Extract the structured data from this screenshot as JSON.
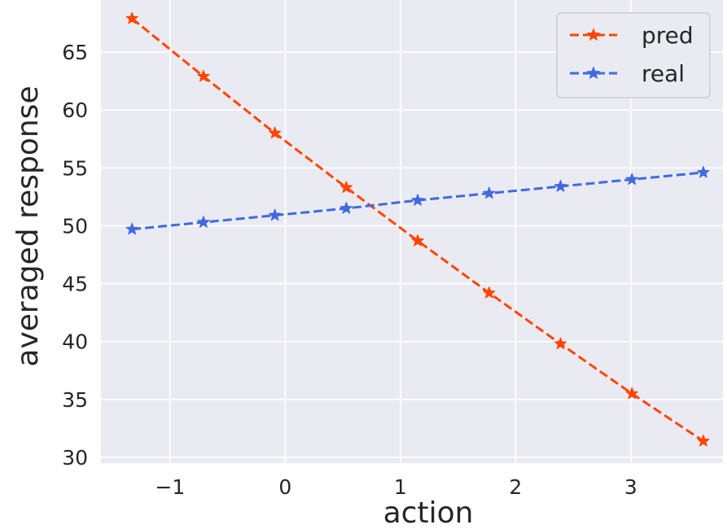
{
  "chart_data": {
    "type": "line",
    "xlabel": "action",
    "ylabel": "averaged response",
    "xlim": [
      -1.6,
      3.8
    ],
    "ylim": [
      29.5,
      69.5
    ],
    "xticks": [
      -1,
      0,
      1,
      2,
      3
    ],
    "xtick_labels": [
      "−1",
      "0",
      "1",
      "2",
      "3"
    ],
    "yticks": [
      30,
      35,
      40,
      45,
      50,
      55,
      60,
      65
    ],
    "ytick_labels": [
      "30",
      "35",
      "40",
      "45",
      "50",
      "55",
      "60",
      "65"
    ],
    "grid": true,
    "legend_position": "top-right",
    "series": [
      {
        "name": "pred",
        "color": "#ff4500",
        "marker": "star",
        "linestyle": "dashed",
        "x": [
          -1.33,
          -0.71,
          -0.09,
          0.53,
          1.15,
          1.77,
          2.39,
          3.01,
          3.63
        ],
        "y": [
          67.9,
          62.9,
          58.0,
          53.3,
          48.7,
          44.2,
          39.8,
          35.5,
          31.4
        ]
      },
      {
        "name": "real",
        "color": "#4169e1",
        "marker": "star",
        "linestyle": "dashed",
        "x": [
          -1.33,
          -0.71,
          -0.09,
          0.53,
          1.15,
          1.77,
          2.39,
          3.01,
          3.63
        ],
        "y": [
          49.7,
          50.3,
          50.9,
          51.5,
          52.2,
          52.8,
          53.4,
          54.0,
          54.6
        ]
      }
    ]
  }
}
